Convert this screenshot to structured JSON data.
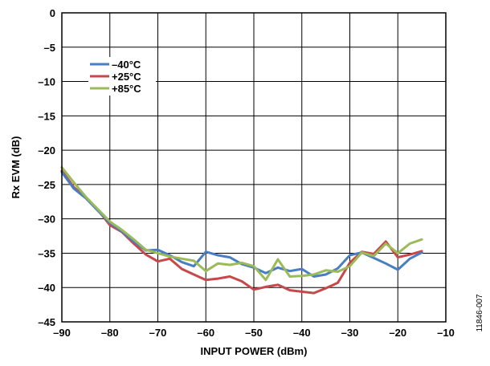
{
  "chart_data": {
    "type": "line",
    "title": "",
    "xlabel": "INPUT POWER (dBm)",
    "ylabel": "Rx EVM (dB)",
    "xlim": [
      -90,
      -10
    ],
    "ylim": [
      -45,
      0
    ],
    "xticks": [
      -90,
      -80,
      -70,
      -60,
      -50,
      -40,
      -30,
      -20,
      -10
    ],
    "yticks": [
      0,
      -5,
      -10,
      -15,
      -20,
      -25,
      -30,
      -35,
      -40,
      -45
    ],
    "xtick_labels": [
      "–90",
      "–80",
      "–70",
      "–60",
      "–50",
      "–40",
      "–30",
      "–20",
      "–10"
    ],
    "ytick_labels": [
      "0",
      "–5",
      "–10",
      "–15",
      "–20",
      "–25",
      "–30",
      "–35",
      "–40",
      "–45"
    ],
    "grid": true,
    "legend_position": "upper-left",
    "x": [
      -90,
      -87.5,
      -85,
      -82.5,
      -80,
      -77.5,
      -75,
      -72.5,
      -70,
      -67.5,
      -65,
      -62.5,
      -60,
      -57.5,
      -55,
      -52.5,
      -50,
      -47.5,
      -45,
      -42.5,
      -40,
      -37.5,
      -35,
      -32.5,
      -30,
      -27.5,
      -25,
      -22.5,
      -20,
      -17.5,
      -15
    ],
    "series": [
      {
        "name": "–40°C",
        "color": "#4a7ec2",
        "values": [
          -23.2,
          -25.6,
          -27.0,
          -28.8,
          -30.6,
          -31.8,
          -33.3,
          -34.6,
          -34.5,
          -35.3,
          -36.3,
          -36.9,
          -34.8,
          -35.3,
          -35.6,
          -36.6,
          -37.1,
          -37.9,
          -37.1,
          -37.6,
          -37.3,
          -38.4,
          -38.1,
          -37.2,
          -35.3,
          -34.9,
          -35.7,
          -36.5,
          -37.4,
          -35.8,
          -34.9
        ]
      },
      {
        "name": "+25°C",
        "color": "#c8474a",
        "values": [
          -23.0,
          -25.4,
          -26.9,
          -28.7,
          -30.9,
          -31.9,
          -33.6,
          -35.2,
          -36.2,
          -35.8,
          -37.3,
          -38.1,
          -38.9,
          -38.7,
          -38.4,
          -39.1,
          -40.3,
          -39.9,
          -39.6,
          -40.4,
          -40.6,
          -40.8,
          -40.1,
          -39.3,
          -36.4,
          -34.8,
          -35.1,
          -33.3,
          -35.6,
          -35.2,
          -34.7
        ]
      },
      {
        "name": "+85°C",
        "color": "#9bbb59",
        "values": [
          -22.5,
          -24.7,
          -26.8,
          -28.6,
          -30.4,
          -31.6,
          -33.0,
          -34.5,
          -35.0,
          -35.5,
          -35.8,
          -36.1,
          -37.6,
          -36.5,
          -36.7,
          -36.4,
          -36.9,
          -38.9,
          -35.9,
          -38.4,
          -38.3,
          -38.1,
          -37.5,
          -37.7,
          -36.9,
          -34.9,
          -35.4,
          -33.6,
          -35.0,
          -33.6,
          -33.0
        ]
      }
    ],
    "figure_id": "11846-007"
  }
}
